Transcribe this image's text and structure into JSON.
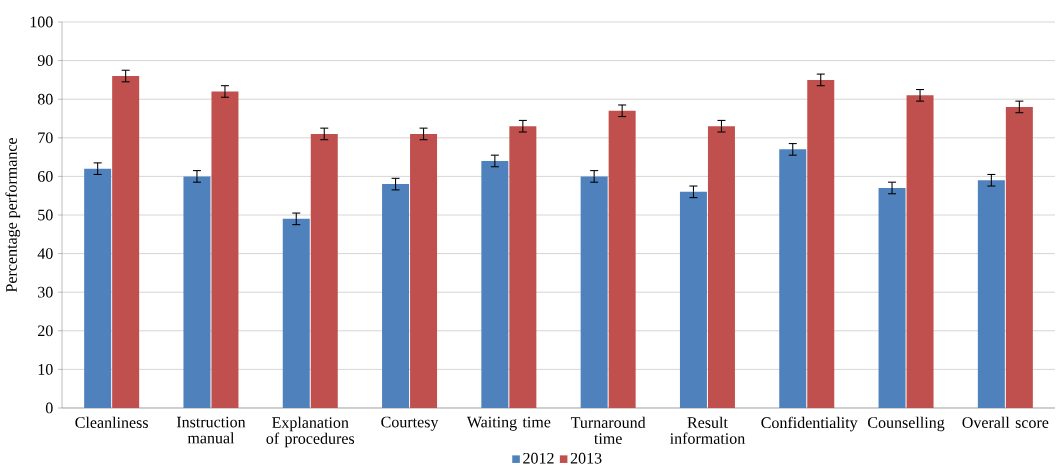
{
  "chart_data": {
    "type": "bar",
    "ylabel": "Percentage performance",
    "categories": [
      "Cleanliness",
      "Instruction manual",
      "Explanation of procedures",
      "Courtesy",
      "Waiting time",
      "Turnaround time",
      "Result information",
      "Confidentiality",
      "Counselling",
      "Overall score"
    ],
    "series": [
      {
        "name": "2012",
        "color": "#4f81bd",
        "values": [
          62,
          60,
          49,
          58,
          64,
          60,
          56,
          67,
          57,
          59
        ],
        "errors": [
          1.5,
          1.5,
          1.5,
          1.5,
          1.5,
          1.5,
          1.5,
          1.5,
          1.5,
          1.5
        ]
      },
      {
        "name": "2013",
        "color": "#c0504d",
        "values": [
          86,
          82,
          71,
          71,
          73,
          77,
          73,
          85,
          81,
          78
        ],
        "errors": [
          1.5,
          1.5,
          1.5,
          1.5,
          1.5,
          1.5,
          1.5,
          1.5,
          1.5,
          1.5
        ]
      }
    ],
    "ylim": [
      0,
      100
    ],
    "yticks": [
      0,
      10,
      20,
      30,
      40,
      50,
      60,
      70,
      80,
      90,
      100
    ],
    "grid": "y",
    "legend": "bottom"
  }
}
